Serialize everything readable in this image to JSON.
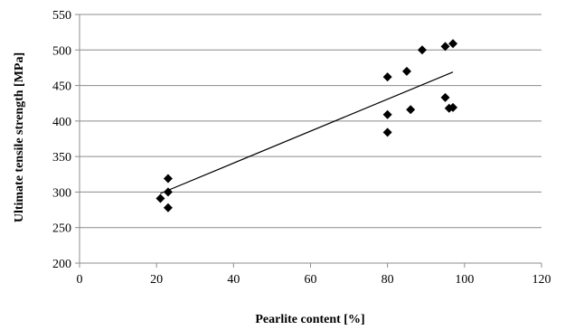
{
  "chart_data": {
    "type": "scatter",
    "title": "",
    "xlabel": "Pearlite content [%]",
    "ylabel": "Ultimate tensile strength [MPa]",
    "xlim": [
      0,
      120
    ],
    "ylim": [
      200,
      550
    ],
    "xticks": [
      0,
      20,
      40,
      60,
      80,
      100,
      120
    ],
    "yticks": [
      200,
      250,
      300,
      350,
      400,
      450,
      500,
      550
    ],
    "grid": "horizontal",
    "legend": "none",
    "marker": "diamond",
    "marker_color": "#000000",
    "points": [
      {
        "x": 21,
        "y": 291
      },
      {
        "x": 23,
        "y": 278
      },
      {
        "x": 23,
        "y": 300
      },
      {
        "x": 23,
        "y": 319
      },
      {
        "x": 80,
        "y": 462
      },
      {
        "x": 80,
        "y": 409
      },
      {
        "x": 80,
        "y": 384
      },
      {
        "x": 85,
        "y": 470
      },
      {
        "x": 86,
        "y": 416
      },
      {
        "x": 89,
        "y": 500
      },
      {
        "x": 95,
        "y": 505
      },
      {
        "x": 95,
        "y": 433
      },
      {
        "x": 96,
        "y": 418
      },
      {
        "x": 97,
        "y": 509
      },
      {
        "x": 97,
        "y": 419
      }
    ],
    "trendline": {
      "type": "linear",
      "x": [
        21,
        97
      ],
      "y": [
        298,
        469
      ]
    }
  }
}
